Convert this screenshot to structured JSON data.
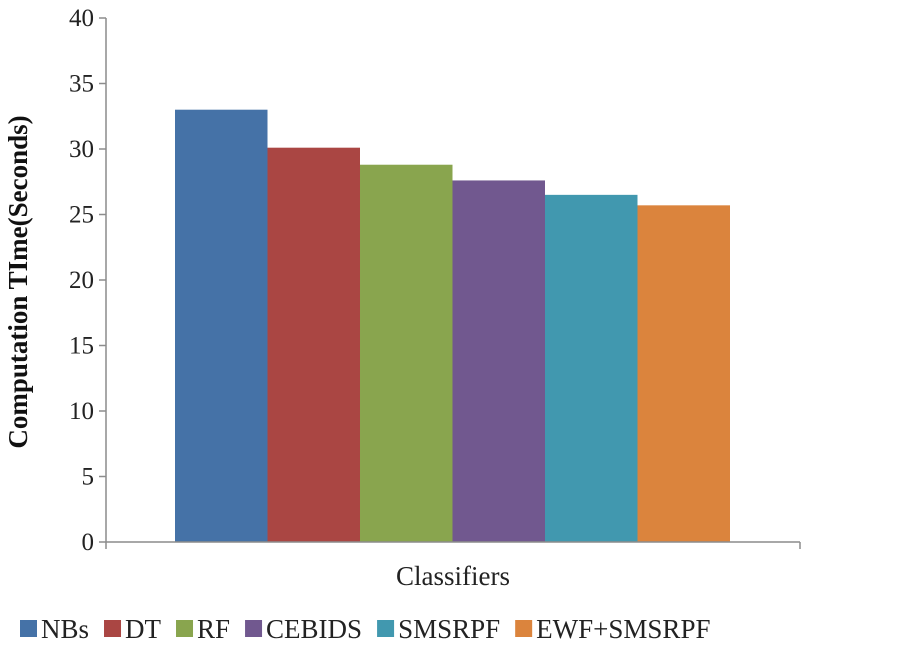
{
  "chart_data": {
    "type": "bar",
    "title": "",
    "xlabel": "Classifiers",
    "ylabel": "Computation TIme(Seconds)",
    "ylim": [
      0,
      40
    ],
    "yticks": [
      0,
      5,
      10,
      15,
      20,
      25,
      30,
      35,
      40
    ],
    "categories": [
      "Classifiers"
    ],
    "grid": false,
    "legend_position": "bottom",
    "series": [
      {
        "name": "NBs",
        "values": [
          33.0
        ],
        "color": "#4572A7"
      },
      {
        "name": "DT",
        "values": [
          30.1
        ],
        "color": "#AA4643"
      },
      {
        "name": "RF",
        "values": [
          28.8
        ],
        "color": "#89A54E"
      },
      {
        "name": "CEBIDS",
        "values": [
          27.6
        ],
        "color": "#71588F"
      },
      {
        "name": "SMSRPF",
        "values": [
          26.5
        ],
        "color": "#4198AF"
      },
      {
        "name": "EWF+SMSRPF",
        "values": [
          25.7
        ],
        "color": "#DB843D"
      }
    ]
  }
}
